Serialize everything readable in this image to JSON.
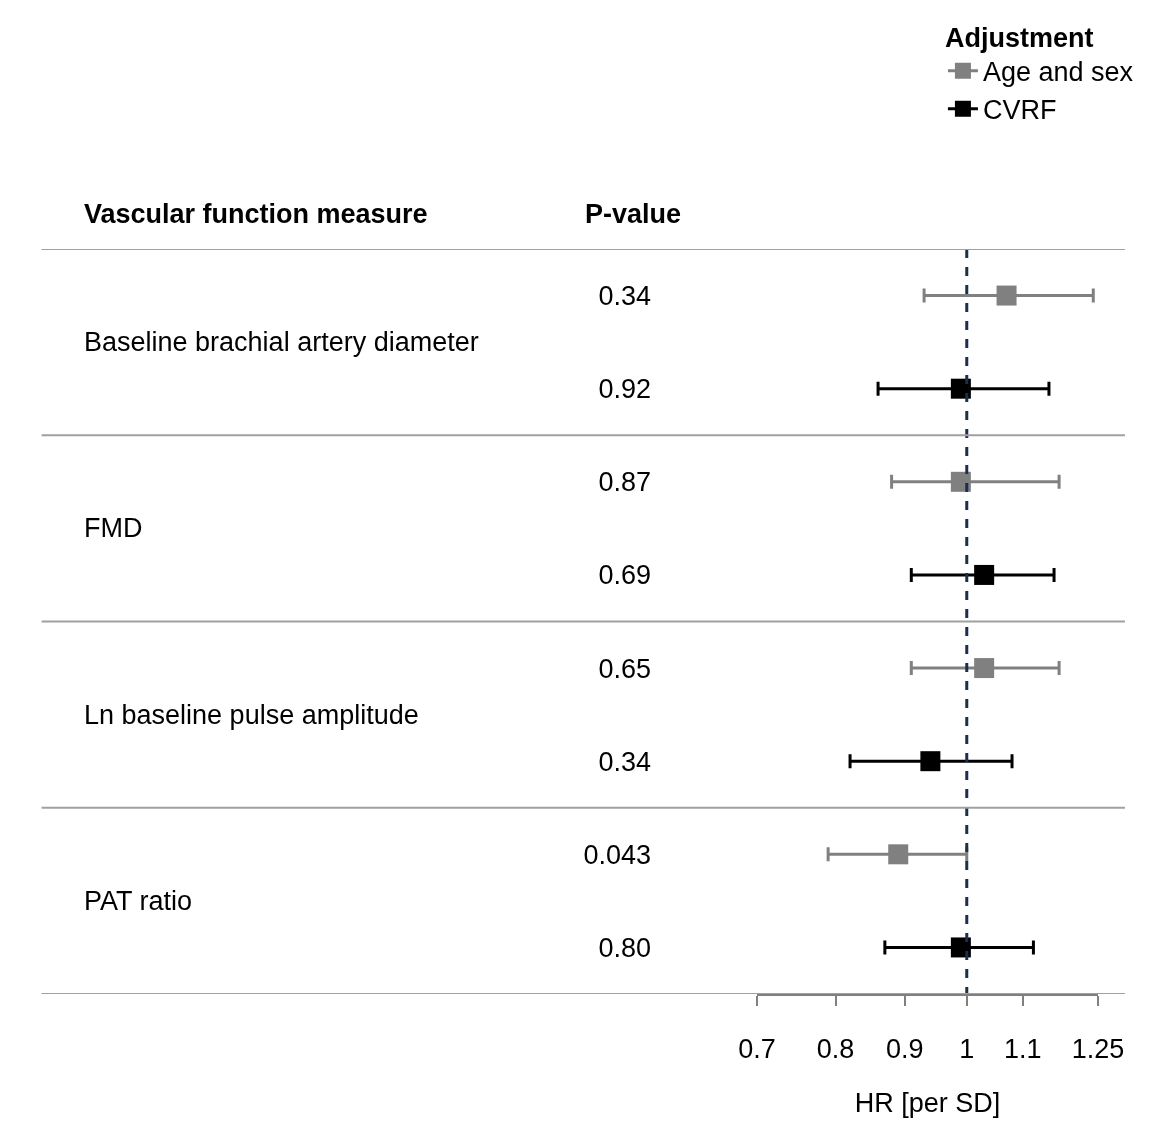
{
  "chart_data": {
    "type": "scatter",
    "orientation": "horizontal",
    "ylabel": "P-value",
    "xlabel": "HR [per SD]",
    "legend_title": "Adjustment",
    "legend": "top right",
    "log": "x",
    "marker": "square",
    "grid": false,
    "categories": [
      "0.34",
      "0.92",
      "0.87",
      "0.69",
      "0.65",
      "0.34",
      "0.043",
      "0.80"
    ],
    "series": [
      {
        "name": "Age and sex",
        "color": "#808080",
        "values": [
          1.07,
          null,
          0.99,
          null,
          1.03,
          null,
          0.89,
          null
        ],
        "errors": [
          [
            0.93,
            1.24
          ],
          null,
          [
            0.88,
            1.17
          ],
          null,
          [
            0.91,
            1.17
          ],
          null,
          [
            0.79,
            1.0
          ],
          null
        ]
      },
      {
        "name": "CVRF",
        "color": "#000000",
        "values": [
          null,
          0.99,
          null,
          1.03,
          null,
          0.94,
          null,
          0.99
        ],
        "errors": [
          null,
          [
            0.86,
            1.15
          ],
          null,
          [
            0.91,
            1.16
          ],
          null,
          [
            0.82,
            1.08
          ],
          null,
          [
            0.87,
            1.12
          ]
        ]
      }
    ],
    "xlim": [
      0.7,
      1.25
    ],
    "xticks": [
      0.7,
      0.8,
      0.9,
      1,
      1.1,
      1.25
    ],
    "ref_lines": [
      {
        "axis": "x",
        "value": 1,
        "color": "#1f2d4d",
        "line_style": "dashed"
      }
    ],
    "annotations": [
      "Vascular function measure",
      "Baseline brachial artery diameter",
      "FMD",
      "Ln baseline pulse amplitude",
      "PAT ratio"
    ]
  }
}
